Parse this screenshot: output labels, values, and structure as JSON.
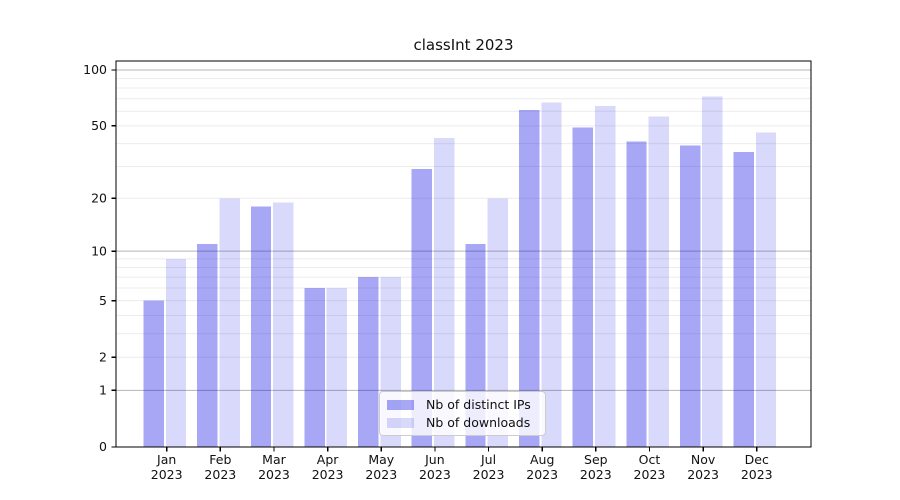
{
  "chart_data": {
    "type": "bar",
    "title": "classInt 2023",
    "categories": [
      "Jan",
      "Feb",
      "Mar",
      "Apr",
      "May",
      "Jun",
      "Jul",
      "Aug",
      "Sep",
      "Oct",
      "Nov",
      "Dec"
    ],
    "year_label": "2023",
    "series": [
      {
        "name": "Nb of distinct IPs",
        "color": "rgba(10,10,230,0.36)",
        "color_hex_on_white": "#a6a6f5",
        "values": [
          5,
          11,
          18,
          6,
          7,
          29,
          11,
          61,
          49,
          41,
          39,
          36
        ]
      },
      {
        "name": "Nb of downloads",
        "color": "rgba(10,10,230,0.155)",
        "color_hex_on_white": "#dcdcf9",
        "values": [
          9,
          20,
          19,
          6,
          7,
          43,
          20,
          67,
          64,
          56,
          72,
          46
        ]
      }
    ],
    "xlabel": "",
    "ylabel": "",
    "yscale": "log1p",
    "ylim": [
      0,
      112
    ],
    "yticks": [
      0,
      1,
      2,
      5,
      10,
      20,
      50,
      100
    ],
    "minor_gridlines": [
      2,
      3,
      4,
      5,
      6,
      7,
      8,
      9,
      20,
      30,
      40,
      50,
      60,
      70,
      80,
      90
    ],
    "major_gridlines": [
      1,
      10,
      100
    ],
    "grid": true,
    "legend_position": "lower center",
    "colors": {
      "minor_grid": "#ececec",
      "major_grid": "#b5b5b5",
      "frame": "#000000",
      "tick_text": "#111111"
    }
  }
}
